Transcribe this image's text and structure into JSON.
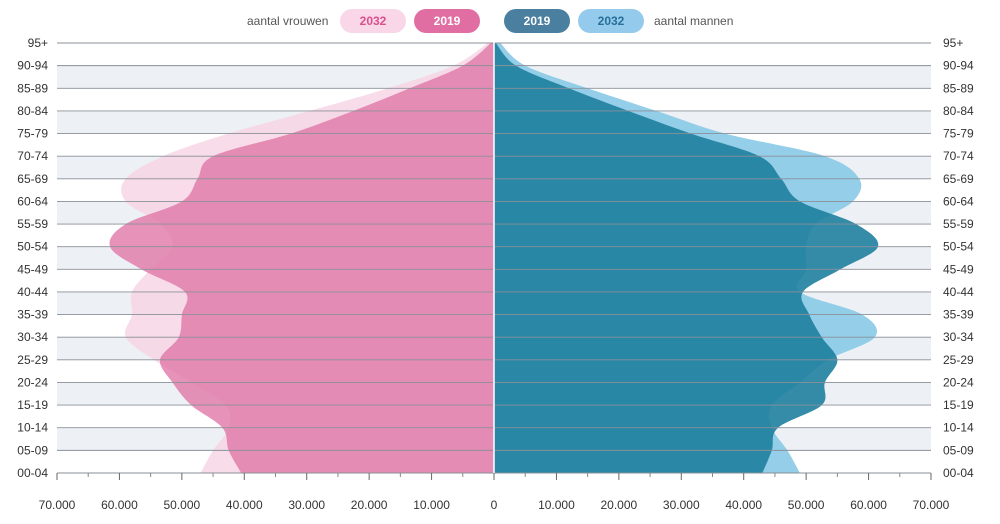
{
  "legend": {
    "women_label": "aantal vrouwen",
    "men_label": "aantal mannen",
    "women_2032": "2032",
    "women_2019": "2019",
    "men_2019": "2019",
    "men_2032": "2032"
  },
  "colors": {
    "women_2019": "#e07aaa",
    "women_2032": "#f6d3e4",
    "men_2019": "#1e7f9e",
    "men_2032": "#8ecbe8",
    "legend_women_2032_bg": "#f9d7e8",
    "legend_women_2032_text": "#d9508a",
    "legend_women_2019_bg": "#e06ea3",
    "legend_men_2019_bg": "#4a7f9f",
    "legend_men_2032_bg": "#94cbec",
    "legend_men_2032_text": "#2a6f9a",
    "band": "#edf1f5",
    "gridline": "#8a9099"
  },
  "chart_data": {
    "type": "population-pyramid",
    "age_groups": [
      "00-04",
      "05-09",
      "10-14",
      "15-19",
      "20-24",
      "25-29",
      "30-34",
      "35-39",
      "40-44",
      "45-49",
      "50-54",
      "55-59",
      "60-64",
      "65-69",
      "70-74",
      "75-79",
      "80-84",
      "85-89",
      "90-94",
      "95+"
    ],
    "x_tick_labels": [
      "70.000",
      "60.000",
      "50.000",
      "40.000",
      "30.000",
      "20.000",
      "10.000",
      "0",
      "10.000",
      "20.000",
      "30.000",
      "40.000",
      "50.000",
      "60.000",
      "70.000"
    ],
    "xlim": [
      0,
      70000
    ],
    "xlabel": "",
    "ylabel": "",
    "series": [
      {
        "name": "vrouwen 2019",
        "side": "left",
        "values": [
          40500,
          42500,
          43500,
          48500,
          51500,
          53500,
          50500,
          50000,
          49500,
          56500,
          61500,
          59000,
          50000,
          47500,
          45000,
          32500,
          22500,
          13500,
          5000,
          500
        ]
      },
      {
        "name": "vrouwen 2032",
        "side": "left",
        "values": [
          47000,
          45000,
          42500,
          43000,
          48500,
          54500,
          59000,
          58000,
          58000,
          55000,
          51500,
          53500,
          59000,
          59000,
          53000,
          42500,
          29500,
          17000,
          6500,
          1000
        ]
      },
      {
        "name": "mannen 2019",
        "side": "right",
        "values": [
          43000,
          44500,
          45500,
          52500,
          53000,
          55000,
          52500,
          50500,
          49500,
          55500,
          61500,
          58000,
          49000,
          46000,
          42500,
          31500,
          21500,
          12000,
          3500,
          300
        ]
      },
      {
        "name": "mannen 2032",
        "side": "right",
        "values": [
          49000,
          47000,
          44500,
          44500,
          49000,
          53500,
          61000,
          59000,
          49000,
          50000,
          50000,
          51500,
          57500,
          58500,
          53000,
          37000,
          26000,
          15000,
          5000,
          1000
        ]
      }
    ]
  }
}
